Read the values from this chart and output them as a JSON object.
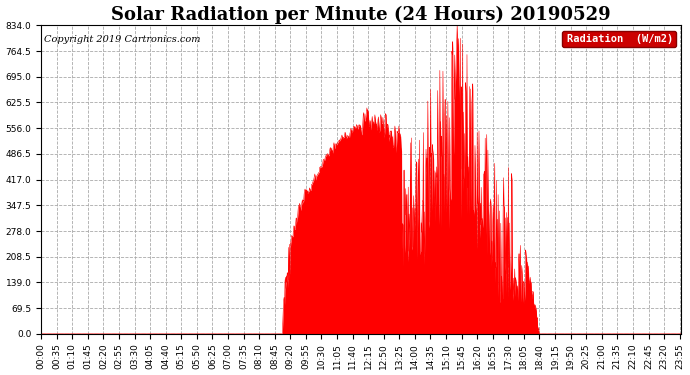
{
  "title": "Solar Radiation per Minute (24 Hours) 20190529",
  "copyright": "Copyright 2019 Cartronics.com",
  "bg_color": "#ffffff",
  "plot_bg_color": "#ffffff",
  "grid_color": "#aaaaaa",
  "fill_color": "#ff0000",
  "line_color": "#ff0000",
  "zero_line_color": "#ff0000",
  "ylim": [
    0.0,
    834.0
  ],
  "yticks": [
    0.0,
    69.5,
    139.0,
    208.5,
    278.0,
    347.5,
    417.0,
    486.5,
    556.0,
    625.5,
    695.0,
    764.5,
    834.0
  ],
  "legend_label": "Radiation  (W/m2)",
  "legend_bg": "#cc0000",
  "legend_text_color": "#ffffff",
  "title_fontsize": 13,
  "tick_fontsize": 6.5,
  "copyright_fontsize": 7,
  "tick_interval_minutes": 35
}
